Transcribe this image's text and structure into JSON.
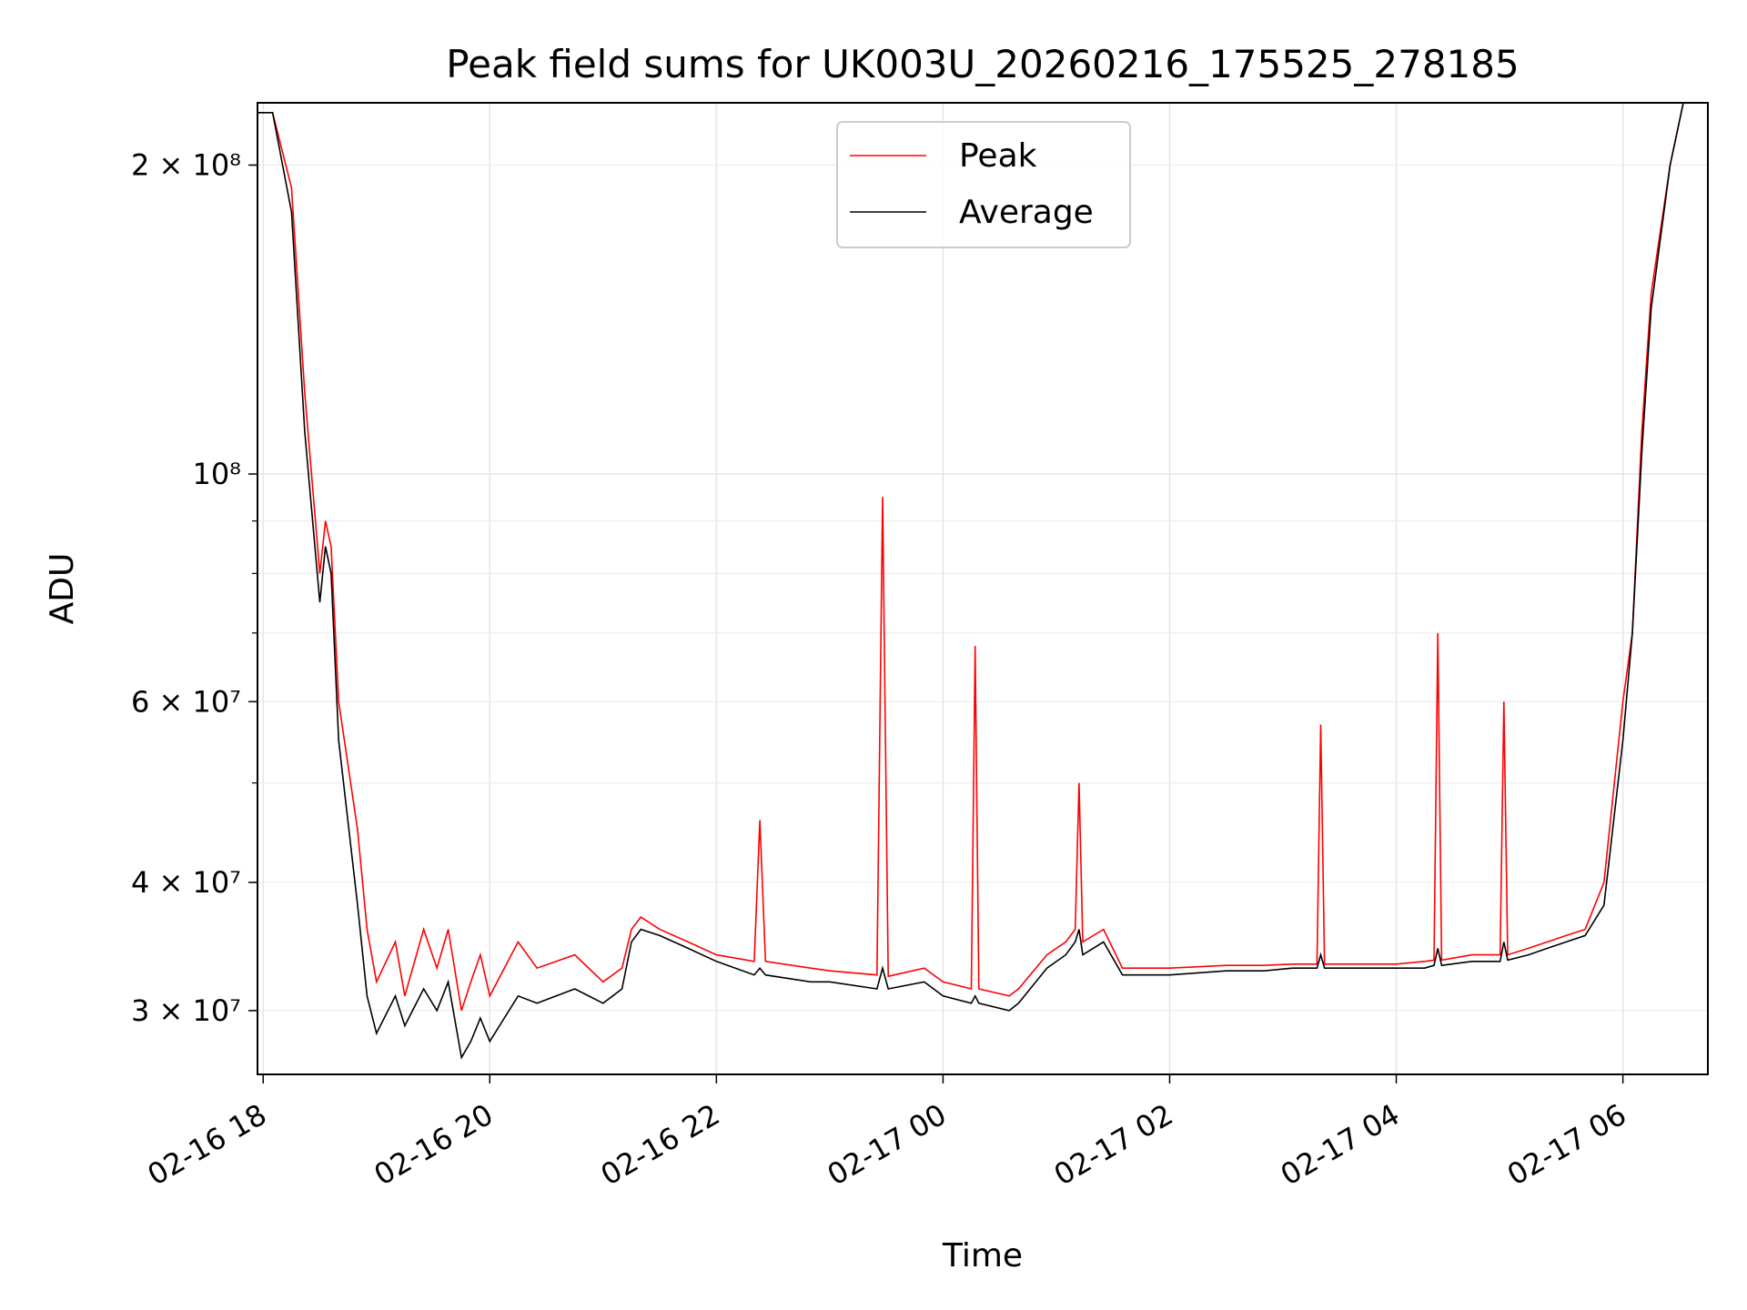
{
  "chart_data": {
    "type": "line",
    "title": "Peak field sums for UK003U_20260216_175525_278185",
    "xlabel": "Time",
    "ylabel": "ADU",
    "yscale": "log",
    "ylim": [
      26000000,
      230000000
    ],
    "xlim": [
      "2026-02-16 17:57",
      "2026-02-17 06:45"
    ],
    "grid": true,
    "legend_placement": "upper center",
    "x_ticks": [
      "02-16 18",
      "02-16 20",
      "02-16 22",
      "02-17 00",
      "02-17 02",
      "02-17 04",
      "02-17 06"
    ],
    "y_ticks": [
      {
        "value": 30000000,
        "label": "3 × 10⁷"
      },
      {
        "value": 40000000,
        "label": "4 × 10⁷"
      },
      {
        "value": 60000000,
        "label": "6 × 10⁷"
      },
      {
        "value": 100000000,
        "label": "10⁸"
      },
      {
        "value": 200000000,
        "label": "2 × 10⁸"
      }
    ],
    "series": [
      {
        "name": "Peak",
        "color": "#ff0000",
        "x": [
          "2026-02-16 17:57",
          "2026-02-16 18:05",
          "2026-02-16 18:15",
          "2026-02-16 18:22",
          "2026-02-16 18:30",
          "2026-02-16 18:33",
          "2026-02-16 18:36",
          "2026-02-16 18:40",
          "2026-02-16 18:50",
          "2026-02-16 18:55",
          "2026-02-16 19:00",
          "2026-02-16 19:10",
          "2026-02-16 19:15",
          "2026-02-16 19:25",
          "2026-02-16 19:32",
          "2026-02-16 19:38",
          "2026-02-16 19:45",
          "2026-02-16 19:50",
          "2026-02-16 19:55",
          "2026-02-16 20:00",
          "2026-02-16 20:15",
          "2026-02-16 20:25",
          "2026-02-16 20:45",
          "2026-02-16 21:00",
          "2026-02-16 21:10",
          "2026-02-16 21:15",
          "2026-02-16 21:20",
          "2026-02-16 21:30",
          "2026-02-16 21:45",
          "2026-02-16 22:00",
          "2026-02-16 22:20",
          "2026-02-16 22:23",
          "2026-02-16 22:26",
          "2026-02-16 22:50",
          "2026-02-16 23:00",
          "2026-02-16 23:25",
          "2026-02-16 23:28",
          "2026-02-16 23:31",
          "2026-02-16 23:50",
          "2026-02-17 00:00",
          "2026-02-17 00:15",
          "2026-02-17 00:17",
          "2026-02-17 00:19",
          "2026-02-17 00:35",
          "2026-02-17 00:40",
          "2026-02-17 00:55",
          "2026-02-17 01:05",
          "2026-02-17 01:10",
          "2026-02-17 01:12",
          "2026-02-17 01:14",
          "2026-02-17 01:25",
          "2026-02-17 01:35",
          "2026-02-17 02:00",
          "2026-02-17 02:30",
          "2026-02-17 02:50",
          "2026-02-17 03:05",
          "2026-02-17 03:18",
          "2026-02-17 03:20",
          "2026-02-17 03:22",
          "2026-02-17 03:30",
          "2026-02-17 03:45",
          "2026-02-17 04:00",
          "2026-02-17 04:15",
          "2026-02-17 04:20",
          "2026-02-17 04:22",
          "2026-02-17 04:24",
          "2026-02-17 04:40",
          "2026-02-17 04:55",
          "2026-02-17 04:57",
          "2026-02-17 04:59",
          "2026-02-17 05:10",
          "2026-02-17 05:20",
          "2026-02-17 05:30",
          "2026-02-17 05:40",
          "2026-02-17 05:50",
          "2026-02-17 06:00",
          "2026-02-17 06:05",
          "2026-02-17 06:10",
          "2026-02-17 06:15",
          "2026-02-17 06:25",
          "2026-02-17 06:32",
          "2026-02-17 06:45"
        ],
        "y": [
          225000000,
          225000000,
          190000000,
          120000000,
          80000000,
          90000000,
          85000000,
          60000000,
          45000000,
          36000000,
          32000000,
          35000000,
          31000000,
          36000000,
          33000000,
          36000000,
          30000000,
          32000000,
          34000000,
          31000000,
          35000000,
          33000000,
          34000000,
          32000000,
          33000000,
          36000000,
          37000000,
          36000000,
          35000000,
          34000000,
          33500000,
          46000000,
          33500000,
          33000000,
          32800000,
          32500000,
          95000000,
          32400000,
          33000000,
          32000000,
          31500000,
          68000000,
          31500000,
          31000000,
          31500000,
          34000000,
          35000000,
          36000000,
          50000000,
          35000000,
          36000000,
          33000000,
          33000000,
          33200000,
          33200000,
          33300000,
          33300000,
          57000000,
          33300000,
          33300000,
          33300000,
          33300000,
          33500000,
          33600000,
          70000000,
          33600000,
          34000000,
          34000000,
          60000000,
          34000000,
          34500000,
          35000000,
          35500000,
          36000000,
          40000000,
          60000000,
          70000000,
          110000000,
          150000000,
          200000000,
          230000000,
          230000000
        ]
      },
      {
        "name": "Average",
        "color": "#000000",
        "x": [
          "2026-02-16 17:57",
          "2026-02-16 18:05",
          "2026-02-16 18:15",
          "2026-02-16 18:22",
          "2026-02-16 18:30",
          "2026-02-16 18:33",
          "2026-02-16 18:36",
          "2026-02-16 18:40",
          "2026-02-16 18:50",
          "2026-02-16 18:55",
          "2026-02-16 19:00",
          "2026-02-16 19:10",
          "2026-02-16 19:15",
          "2026-02-16 19:25",
          "2026-02-16 19:32",
          "2026-02-16 19:38",
          "2026-02-16 19:45",
          "2026-02-16 19:50",
          "2026-02-16 19:55",
          "2026-02-16 20:00",
          "2026-02-16 20:15",
          "2026-02-16 20:25",
          "2026-02-16 20:45",
          "2026-02-16 21:00",
          "2026-02-16 21:10",
          "2026-02-16 21:15",
          "2026-02-16 21:20",
          "2026-02-16 21:30",
          "2026-02-16 21:45",
          "2026-02-16 22:00",
          "2026-02-16 22:20",
          "2026-02-16 22:23",
          "2026-02-16 22:26",
          "2026-02-16 22:50",
          "2026-02-16 23:00",
          "2026-02-16 23:25",
          "2026-02-16 23:28",
          "2026-02-16 23:31",
          "2026-02-16 23:50",
          "2026-02-17 00:00",
          "2026-02-17 00:15",
          "2026-02-17 00:17",
          "2026-02-17 00:19",
          "2026-02-17 00:35",
          "2026-02-17 00:40",
          "2026-02-17 00:55",
          "2026-02-17 01:05",
          "2026-02-17 01:10",
          "2026-02-17 01:12",
          "2026-02-17 01:14",
          "2026-02-17 01:25",
          "2026-02-17 01:35",
          "2026-02-17 02:00",
          "2026-02-17 02:30",
          "2026-02-17 02:50",
          "2026-02-17 03:05",
          "2026-02-17 03:18",
          "2026-02-17 03:20",
          "2026-02-17 03:22",
          "2026-02-17 03:30",
          "2026-02-17 03:45",
          "2026-02-17 04:00",
          "2026-02-17 04:15",
          "2026-02-17 04:20",
          "2026-02-17 04:22",
          "2026-02-17 04:24",
          "2026-02-17 04:40",
          "2026-02-17 04:55",
          "2026-02-17 04:57",
          "2026-02-17 04:59",
          "2026-02-17 05:10",
          "2026-02-17 05:20",
          "2026-02-17 05:30",
          "2026-02-17 05:40",
          "2026-02-17 05:50",
          "2026-02-17 06:00",
          "2026-02-17 06:05",
          "2026-02-17 06:10",
          "2026-02-17 06:15",
          "2026-02-17 06:25",
          "2026-02-17 06:32",
          "2026-02-17 06:45"
        ],
        "y": [
          225000000,
          225000000,
          180000000,
          110000000,
          75000000,
          85000000,
          80000000,
          55000000,
          38000000,
          31000000,
          28500000,
          31000000,
          29000000,
          31500000,
          30000000,
          32000000,
          27000000,
          28000000,
          29500000,
          28000000,
          31000000,
          30500000,
          31500000,
          30500000,
          31500000,
          35000000,
          36000000,
          35500000,
          34500000,
          33500000,
          32500000,
          33000000,
          32500000,
          32000000,
          32000000,
          31500000,
          33000000,
          31500000,
          32000000,
          31000000,
          30500000,
          31000000,
          30500000,
          30000000,
          30500000,
          33000000,
          34000000,
          35000000,
          36000000,
          34000000,
          35000000,
          32500000,
          32500000,
          32800000,
          32800000,
          33000000,
          33000000,
          34000000,
          33000000,
          33000000,
          33000000,
          33000000,
          33000000,
          33200000,
          34500000,
          33200000,
          33500000,
          33500000,
          35000000,
          33600000,
          34000000,
          34500000,
          35000000,
          35500000,
          38000000,
          55000000,
          70000000,
          105000000,
          145000000,
          200000000,
          230000000,
          230000000
        ]
      }
    ]
  }
}
